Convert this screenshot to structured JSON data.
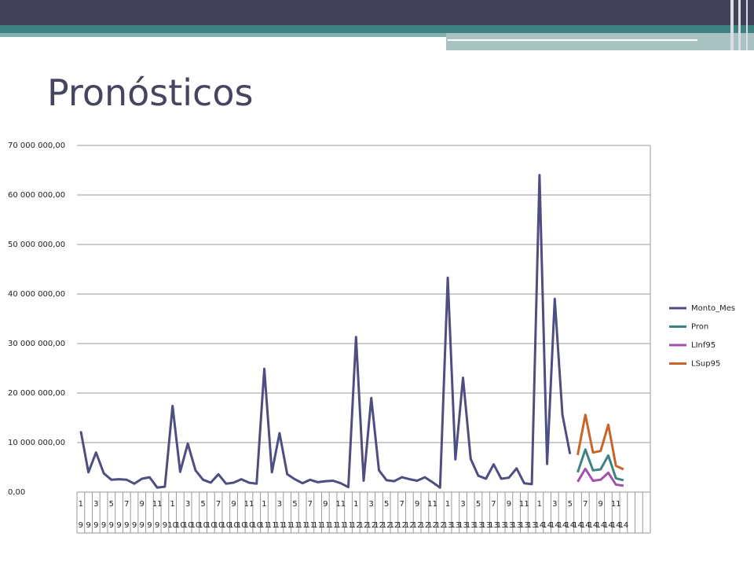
{
  "slide_title": "Pronósticos",
  "chart_data": {
    "type": "line",
    "categories": [
      "1",
      null,
      "3",
      null,
      "5",
      null,
      "7",
      null,
      "9",
      null,
      "11",
      null,
      "1",
      null,
      "3",
      null,
      "5",
      null,
      "7",
      null,
      "9",
      null,
      "11",
      null,
      "1",
      null,
      "3",
      null,
      "5",
      null,
      "7",
      null,
      "9",
      null,
      "11",
      null,
      "1",
      null,
      "3",
      null,
      "5",
      null,
      "7",
      null,
      "9",
      null,
      "11",
      null,
      "1",
      null,
      "3",
      null,
      "5",
      null,
      "7",
      null,
      "9",
      null,
      "11",
      null,
      "1",
      null,
      "3",
      null,
      "5",
      null,
      "7",
      null,
      "9",
      null,
      "11",
      null,
      null,
      null,
      null
    ],
    "category_years": [
      "9",
      "9",
      "9",
      "9",
      "9",
      "9",
      "9",
      "9",
      "9",
      "9",
      "9",
      "9",
      "10",
      "10",
      "10",
      "10",
      "10",
      "10",
      "10",
      "10",
      "10",
      "10",
      "10",
      "10",
      "11",
      "11",
      "11",
      "11",
      "11",
      "11",
      "11",
      "11",
      "11",
      "11",
      "11",
      "11",
      "12",
      "12",
      "12",
      "12",
      "12",
      "12",
      "12",
      "12",
      "12",
      "12",
      "12",
      "12",
      "13",
      "13",
      "13",
      "13",
      "13",
      "13",
      "13",
      "13",
      "13",
      "13",
      "13",
      "13",
      "14",
      "14",
      "14",
      "14",
      "14",
      "14",
      "14",
      "14",
      "14",
      "14",
      "14",
      "14",
      null,
      null,
      null
    ],
    "series": [
      {
        "name": "Monto_Mes",
        "color": "#4e4e82",
        "values": [
          12300000,
          4000000,
          8000000,
          3800000,
          2500000,
          2600000,
          2500000,
          1700000,
          2700000,
          3000000,
          900000,
          1100000,
          17400000,
          4100000,
          9800000,
          4400000,
          2500000,
          1900000,
          3600000,
          1700000,
          1900000,
          2600000,
          1900000,
          1700000,
          24900000,
          4000000,
          11900000,
          3600000,
          2600000,
          1800000,
          2500000,
          2000000,
          2200000,
          2300000,
          1800000,
          1000000,
          31300000,
          2300000,
          19000000,
          4400000,
          2400000,
          2200000,
          3000000,
          2600000,
          2300000,
          3000000,
          2000000,
          900000,
          43300000,
          6600000,
          23100000,
          6700000,
          3300000,
          2700000,
          5600000,
          2700000,
          2900000,
          4800000,
          1800000,
          1600000,
          64000000,
          5700000,
          39000000,
          15600000,
          7700000,
          null,
          null,
          null,
          null,
          null,
          null,
          null,
          null,
          null,
          null
        ]
      },
      {
        "name": "Pron",
        "color": "#3f8282",
        "values": [
          null,
          null,
          null,
          null,
          null,
          null,
          null,
          null,
          null,
          null,
          null,
          null,
          null,
          null,
          null,
          null,
          null,
          null,
          null,
          null,
          null,
          null,
          null,
          null,
          null,
          null,
          null,
          null,
          null,
          null,
          null,
          null,
          null,
          null,
          null,
          null,
          null,
          null,
          null,
          null,
          null,
          null,
          null,
          null,
          null,
          null,
          null,
          null,
          null,
          null,
          null,
          null,
          null,
          null,
          null,
          null,
          null,
          null,
          null,
          null,
          null,
          null,
          null,
          null,
          null,
          4000000,
          8600000,
          4400000,
          4600000,
          7400000,
          2800000,
          2400000,
          null,
          null,
          null
        ]
      },
      {
        "name": "LInf95",
        "color": "#a24fad",
        "values": [
          null,
          null,
          null,
          null,
          null,
          null,
          null,
          null,
          null,
          null,
          null,
          null,
          null,
          null,
          null,
          null,
          null,
          null,
          null,
          null,
          null,
          null,
          null,
          null,
          null,
          null,
          null,
          null,
          null,
          null,
          null,
          null,
          null,
          null,
          null,
          null,
          null,
          null,
          null,
          null,
          null,
          null,
          null,
          null,
          null,
          null,
          null,
          null,
          null,
          null,
          null,
          null,
          null,
          null,
          null,
          null,
          null,
          null,
          null,
          null,
          null,
          null,
          null,
          null,
          null,
          2100000,
          4700000,
          2300000,
          2500000,
          3900000,
          1500000,
          1300000,
          null,
          null,
          null
        ]
      },
      {
        "name": "LSup95",
        "color": "#c9652a",
        "values": [
          null,
          null,
          null,
          null,
          null,
          null,
          null,
          null,
          null,
          null,
          null,
          null,
          null,
          null,
          null,
          null,
          null,
          null,
          null,
          null,
          null,
          null,
          null,
          null,
          null,
          null,
          null,
          null,
          null,
          null,
          null,
          null,
          null,
          null,
          null,
          null,
          null,
          null,
          null,
          null,
          null,
          null,
          null,
          null,
          null,
          null,
          null,
          null,
          null,
          null,
          null,
          null,
          null,
          null,
          null,
          null,
          null,
          null,
          null,
          null,
          null,
          null,
          null,
          null,
          null,
          7500000,
          15600000,
          8000000,
          8300000,
          13600000,
          5300000,
          4600000,
          null,
          null,
          null
        ]
      }
    ],
    "ylim": [
      0,
      70000000
    ],
    "yticks": [
      {
        "value": 0,
        "label": "0,00"
      },
      {
        "value": 10000000,
        "label": "10 000 000,00"
      },
      {
        "value": 20000000,
        "label": "20 000 000,00"
      },
      {
        "value": 30000000,
        "label": "30 000 000,00"
      },
      {
        "value": 40000000,
        "label": "40 000 000,00"
      },
      {
        "value": 50000000,
        "label": "50 000 000,00"
      },
      {
        "value": 60000000,
        "label": "60 000 000,00"
      },
      {
        "value": 70000000,
        "label": "70 000 000,00"
      }
    ],
    "grid": true,
    "legend": "right"
  }
}
